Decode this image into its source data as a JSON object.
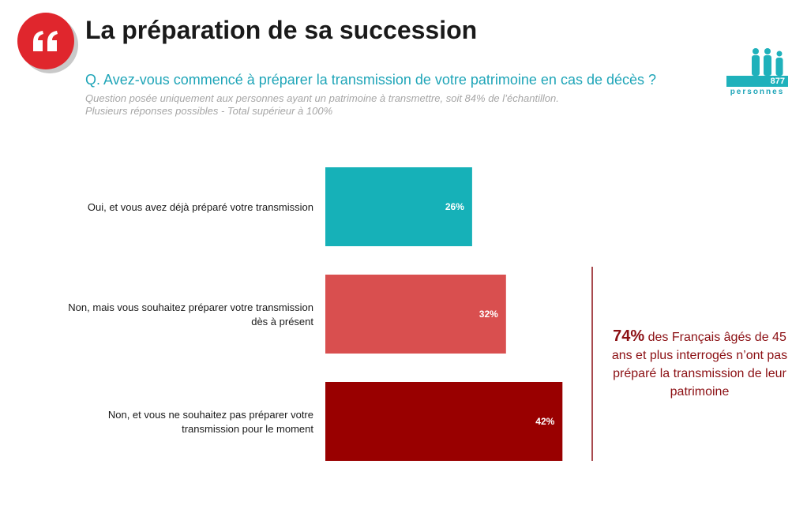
{
  "header": {
    "title": "La préparation de sa succession",
    "question": "Q. Avez-vous commencé à préparer la transmission de votre patrimoine en cas de décès ?",
    "note_line1": "Question posée uniquement aux personnes ayant un patrimoine à transmettre, soit 84% de l’échantillon.",
    "note_line2": "Plusieurs réponses possibles - Total supérieur à 100%"
  },
  "sample": {
    "count": "877",
    "label": "personnes",
    "icon": "people-icon"
  },
  "logo": {
    "icon": "quote-icon",
    "color": "#e0262d"
  },
  "callout": {
    "highlight": "74%",
    "text": " des Français âgés de 45 ans et plus interrogés n’ont pas préparé la transmission de leur patrimoine",
    "color": "#8b0f13"
  },
  "chart_data": {
    "type": "bar",
    "orientation": "horizontal",
    "categories": [
      [
        "Oui, et vous avez déjà préparé votre transmission"
      ],
      [
        "Non, mais vous souhaitez préparer votre transmission",
        "dès à présent"
      ],
      [
        "Non, et vous ne souhaitez pas préparer votre",
        "transmission pour le moment"
      ]
    ],
    "values": [
      26,
      32,
      42
    ],
    "value_labels": [
      "26%",
      "32%",
      "42%"
    ],
    "colors": [
      "#16b1b8",
      "#d94f4f",
      "#990000"
    ],
    "title": "",
    "xlabel": "",
    "ylabel": "",
    "xlim": [
      0,
      100
    ],
    "grid": false,
    "legend": "none"
  }
}
